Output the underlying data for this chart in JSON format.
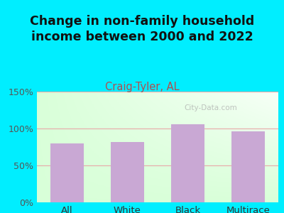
{
  "title": "Change in non-family household\nincome between 2000 and 2022",
  "subtitle": "Craig-Tyler, AL",
  "categories": [
    "All",
    "White",
    "Black",
    "Multirace"
  ],
  "values": [
    80,
    82,
    106,
    96
  ],
  "bar_color": "#c9a8d4",
  "title_fontsize": 12.5,
  "subtitle_fontsize": 10.5,
  "subtitle_color": "#b05050",
  "title_color": "#111111",
  "ylim": [
    0,
    150
  ],
  "yticks": [
    0,
    50,
    100,
    150
  ],
  "ytick_labels": [
    "0%",
    "50%",
    "100%",
    "150%"
  ],
  "background_outer": "#00eeff",
  "watermark": "City-Data.com",
  "grid_color": "#e8a8a8",
  "grid_linewidth": 0.8
}
